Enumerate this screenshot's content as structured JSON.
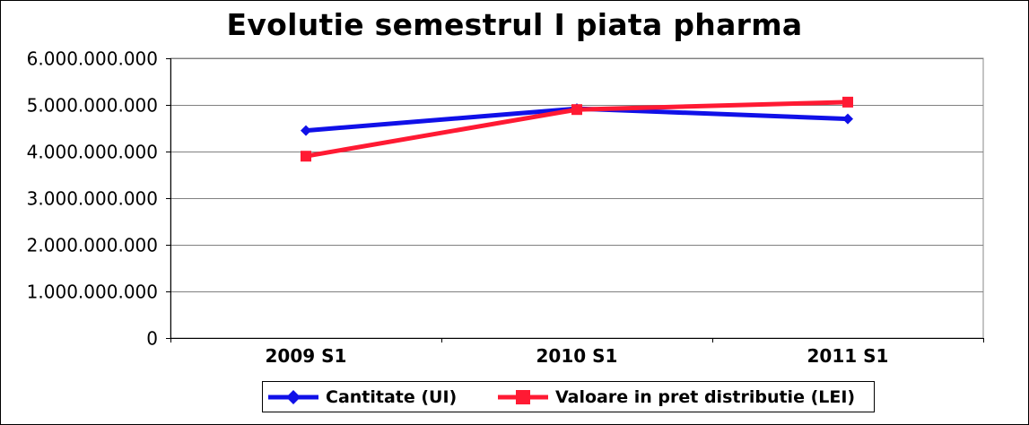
{
  "chart_data": {
    "type": "line",
    "title": "Evolutie semestrul I piata pharma",
    "categories": [
      "2009 S1",
      "2010 S1",
      "2011 S1"
    ],
    "y_tick_labels": [
      "0",
      "1.000.000.000",
      "2.000.000.000",
      "3.000.000.000",
      "4.000.000.000",
      "5.000.000.000",
      "6.000.000.000"
    ],
    "ylim": [
      0,
      6000000000
    ],
    "grid": true,
    "legend_position": "bottom",
    "series": [
      {
        "name": "Cantitate (UI)",
        "values": [
          4450000000,
          4920000000,
          4700000000
        ],
        "color": "#1010e8",
        "marker": "diamond"
      },
      {
        "name": "Valoare in pret distributie (LEI)",
        "values": [
          3900000000,
          4900000000,
          5060000000
        ],
        "color": "#ff1a33",
        "marker": "square"
      }
    ]
  }
}
